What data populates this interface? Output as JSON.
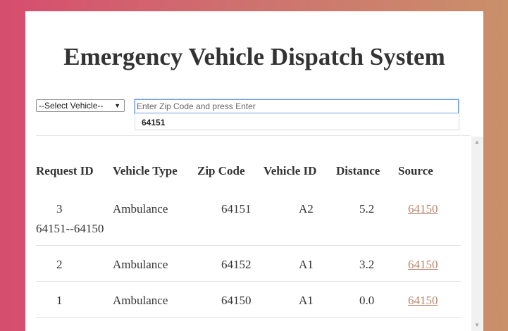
{
  "header": {
    "title": "Emergency Vehicle Dispatch System"
  },
  "controls": {
    "vehicle_select": "--Select Vehicle--",
    "zip_placeholder": "Enter Zip Code and press Enter",
    "zip_suggestion": "64151"
  },
  "table": {
    "columns": [
      "Request ID",
      "Vehicle Type",
      "Zip Code",
      "Vehicle ID",
      "Distance",
      "Source"
    ],
    "rows": [
      {
        "request_id": "3",
        "route": "64151--64150",
        "vehicle_type": "Ambulance",
        "zip_code": "64151",
        "vehicle_id": "A2",
        "distance": "5.2",
        "source": "64150"
      },
      {
        "request_id": "2",
        "vehicle_type": "Ambulance",
        "zip_code": "64152",
        "vehicle_id": "A1",
        "distance": "3.2",
        "source": "64150"
      },
      {
        "request_id": "1",
        "vehicle_type": "Ambulance",
        "zip_code": "64150",
        "vehicle_id": "A1",
        "distance": "0.0",
        "source": "64150"
      }
    ]
  },
  "icons": {
    "dropdown": "caret-down-icon",
    "scroll_up": "scroll-up-icon",
    "scroll_down": "scroll-down-icon"
  },
  "colors": {
    "link": "#b98670",
    "title": "#333333",
    "focus_border": "#6f9be0"
  }
}
